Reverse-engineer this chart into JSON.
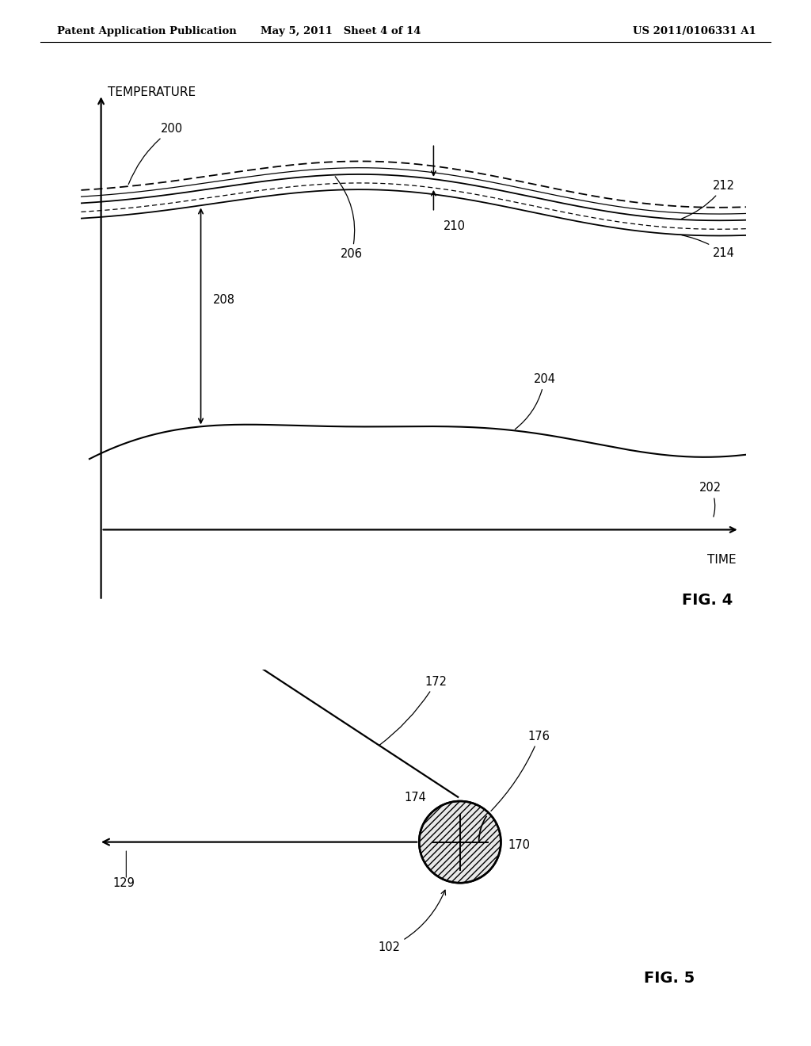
{
  "bg_color": "#ffffff",
  "text_color": "#000000",
  "header_left": "Patent Application Publication",
  "header_mid": "May 5, 2011   Sheet 4 of 14",
  "header_right": "US 2011/0106331 A1",
  "fig4_title": "FIG. 4",
  "fig5_title": "FIG. 5",
  "time_label": "TIME",
  "temp_label": "TEMPERATURE"
}
